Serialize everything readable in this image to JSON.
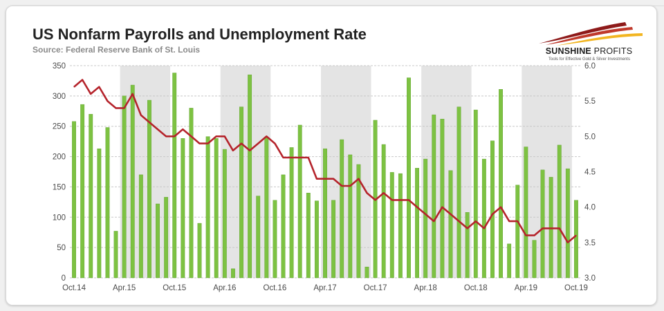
{
  "title": "US Nonfarm Payrolls and Unemployment Rate",
  "subtitle": "Source: Federal Reserve Bank of St. Louis",
  "logo": {
    "name_bold": "SUNSHINE",
    "name_light": "PROFITS",
    "tagline": "Tools for Effective Gold & Silver Investments",
    "colors": [
      "#f2b521",
      "#c0392b",
      "#8e1a1a"
    ]
  },
  "colors": {
    "bar": "#7dc242",
    "bar_edge": "#5e9e2c",
    "line": "#b5232b",
    "grid": "#c8c8c8",
    "plot_bg_light": "#ffffff",
    "plot_bg_dark": "#e4e4e4"
  },
  "chart_data": {
    "type": "bar",
    "title": "US Nonfarm Payrolls and Unemployment Rate",
    "subtitle": "Source: Federal Reserve Bank of St. Louis",
    "x_tick_labels": [
      "Oct.14",
      "Apr.15",
      "Oct.15",
      "Apr.16",
      "Oct.16",
      "Apr.17",
      "Oct.17",
      "Apr.18",
      "Oct.18",
      "Apr.19",
      "Oct.19"
    ],
    "months": [
      "2014-10",
      "2014-11",
      "2014-12",
      "2015-01",
      "2015-02",
      "2015-03",
      "2015-04",
      "2015-05",
      "2015-06",
      "2015-07",
      "2015-08",
      "2015-09",
      "2015-10",
      "2015-11",
      "2015-12",
      "2016-01",
      "2016-02",
      "2016-03",
      "2016-04",
      "2016-05",
      "2016-06",
      "2016-07",
      "2016-08",
      "2016-09",
      "2016-10",
      "2016-11",
      "2016-12",
      "2017-01",
      "2017-02",
      "2017-03",
      "2017-04",
      "2017-05",
      "2017-06",
      "2017-07",
      "2017-08",
      "2017-09",
      "2017-10",
      "2017-11",
      "2017-12",
      "2018-01",
      "2018-02",
      "2018-03",
      "2018-04",
      "2018-05",
      "2018-06",
      "2018-07",
      "2018-08",
      "2018-09",
      "2018-10",
      "2018-11",
      "2018-12",
      "2019-01",
      "2019-02",
      "2019-03",
      "2019-04",
      "2019-05",
      "2019-06",
      "2019-07",
      "2019-08",
      "2019-09",
      "2019-10"
    ],
    "left_axis": {
      "ylim": [
        0,
        350
      ],
      "ticks": [
        0,
        50,
        100,
        150,
        200,
        250,
        300,
        350
      ]
    },
    "right_axis": {
      "ylim": [
        3.0,
        6.0
      ],
      "ticks": [
        "3.0",
        "3.5",
        "4.0",
        "4.5",
        "5.0",
        "5.5",
        "6.0"
      ]
    },
    "grid": true,
    "series": [
      {
        "type": "bar",
        "axis": "left",
        "values": [
          258,
          286,
          270,
          213,
          248,
          77,
          300,
          318,
          170,
          293,
          122,
          133,
          338,
          230,
          280,
          90,
          233,
          230,
          212,
          15,
          282,
          335,
          135,
          232,
          128,
          170,
          215,
          252,
          140,
          127,
          213,
          128,
          228,
          203,
          187,
          18,
          260,
          220,
          174,
          172,
          330,
          181,
          196,
          269,
          262,
          177,
          282,
          108,
          277,
          196,
          226,
          311,
          56,
          153,
          216,
          62,
          178,
          166,
          219,
          180,
          128
        ]
      },
      {
        "type": "line",
        "axis": "right",
        "values": [
          5.7,
          5.8,
          5.6,
          5.7,
          5.5,
          5.4,
          5.4,
          5.6,
          5.3,
          5.2,
          5.1,
          5.0,
          5.0,
          5.1,
          5.0,
          4.9,
          4.9,
          5.0,
          5.0,
          4.8,
          4.9,
          4.8,
          4.9,
          5.0,
          4.9,
          4.7,
          4.7,
          4.7,
          4.7,
          4.4,
          4.4,
          4.4,
          4.3,
          4.3,
          4.4,
          4.2,
          4.1,
          4.2,
          4.1,
          4.1,
          4.1,
          4.0,
          3.9,
          3.8,
          4.0,
          3.9,
          3.8,
          3.7,
          3.8,
          3.7,
          3.9,
          4.0,
          3.8,
          3.8,
          3.6,
          3.6,
          3.7,
          3.7,
          3.7,
          3.5,
          3.6
        ]
      }
    ]
  }
}
